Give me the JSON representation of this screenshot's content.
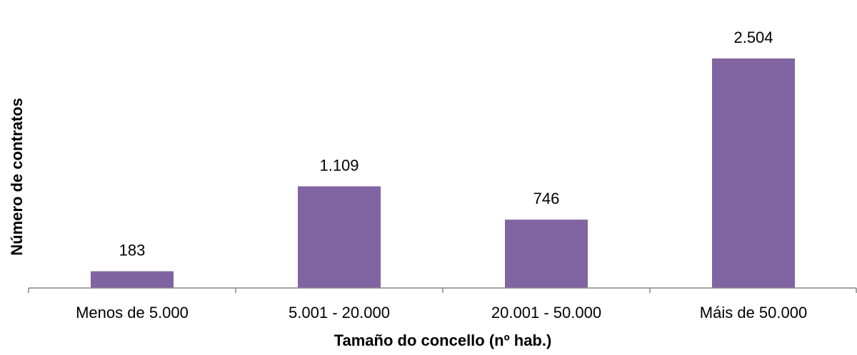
{
  "chart_data": {
    "type": "bar",
    "title": "",
    "xlabel": "Tamaño do concello (nº hab.)",
    "ylabel": "Número de contratos",
    "categories": [
      "Menos de 5.000",
      "5.001 - 20.000",
      "20.001 - 50.000",
      "Máis de 50.000"
    ],
    "values": [
      183,
      1109,
      746,
      2504
    ],
    "value_labels": [
      "183",
      "1.109",
      "746",
      "2.504"
    ],
    "ylim": [
      0,
      2504
    ],
    "grid": false,
    "legend": "none",
    "bar_color": "#8064A2",
    "axis_color": "#868686"
  }
}
